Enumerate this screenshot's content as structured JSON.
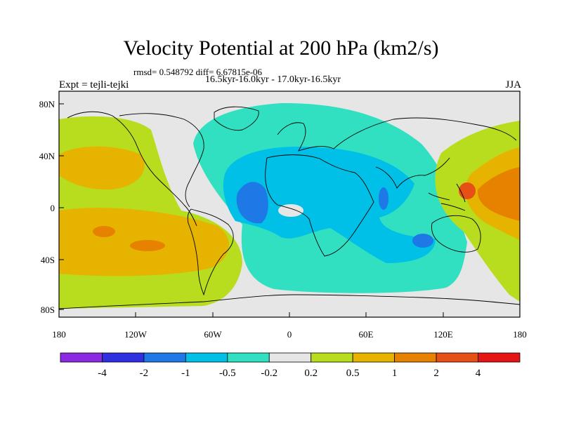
{
  "title": "Velocity Potential at 200 hPa (km2/s)",
  "stats": "rmsd= 0.548792 diff= 6.67815e-06",
  "subtitle": "16.5kyr-16.0kyr - 17.0kyr-16.5kyr",
  "left_label": "Expt = tejli-tejki",
  "right_label": "JJA",
  "axes": {
    "lat_ticks": [
      "80N",
      "40N",
      "0",
      "40S",
      "80S"
    ],
    "lon_ticks": [
      "180",
      "120W",
      "60W",
      "0",
      "60E",
      "120E",
      "180"
    ]
  },
  "colorbar": {
    "colors": [
      "#8a2be2",
      "#3030e0",
      "#1e78e6",
      "#00c0e8",
      "#30e0c0",
      "#e6e6e6",
      "#b8dc1e",
      "#e6b400",
      "#e68200",
      "#e65014",
      "#e61414"
    ],
    "labels": [
      "-4",
      "-2",
      "-1",
      "-0.5",
      "-0.2",
      "0.2",
      "0.5",
      "1",
      "2",
      "4"
    ]
  }
}
